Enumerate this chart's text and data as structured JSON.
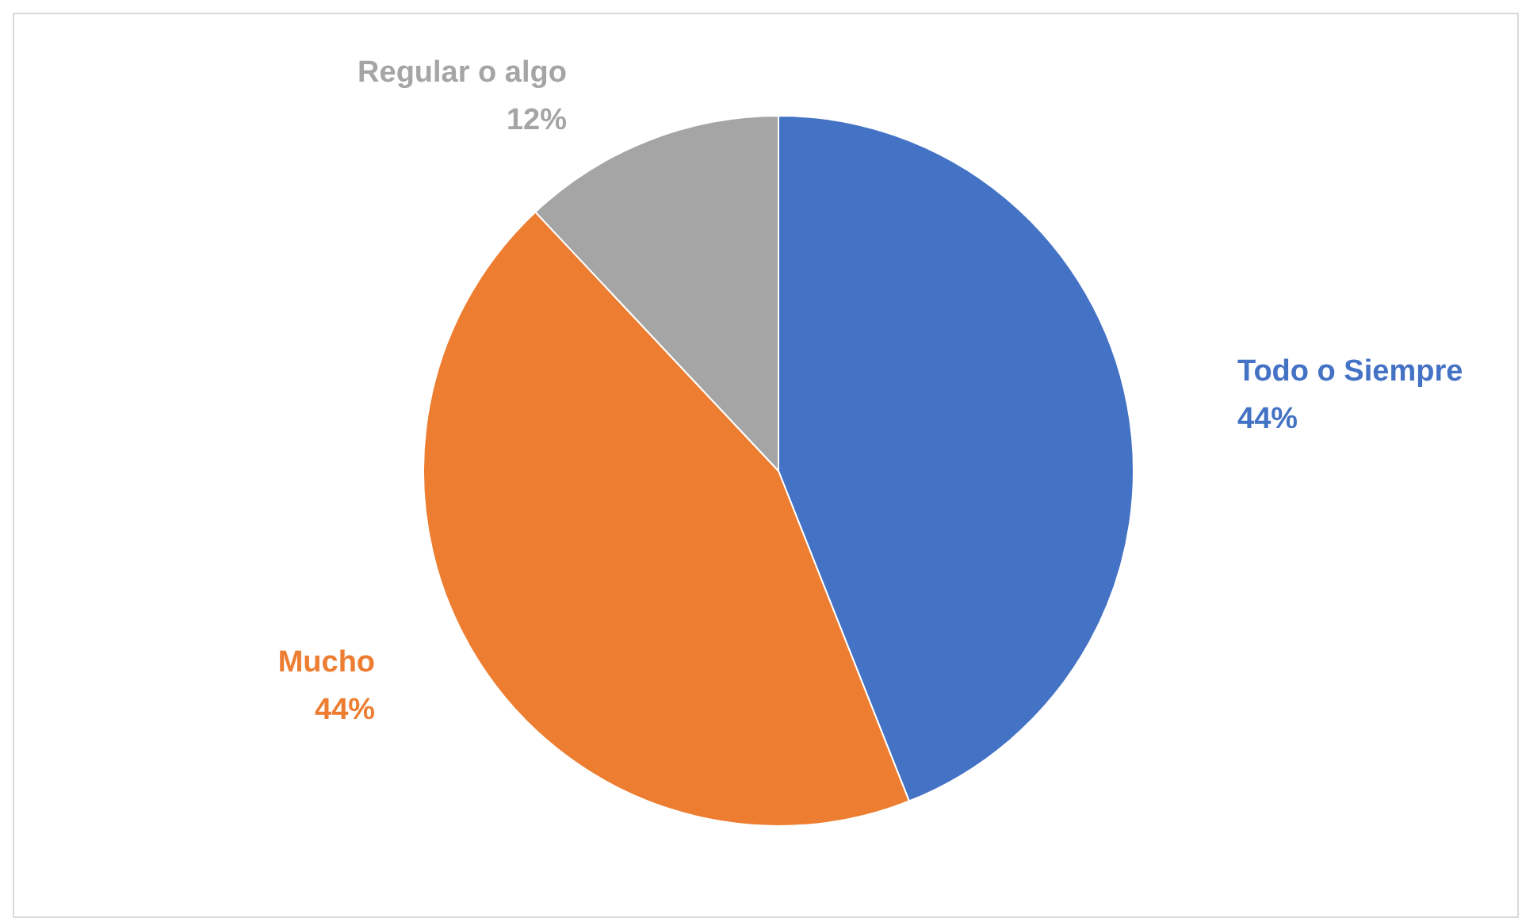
{
  "chart_data": {
    "type": "pie",
    "categories": [
      "Todo o Siempre",
      "Mucho",
      "Regular o algo"
    ],
    "values": [
      44,
      44,
      12
    ],
    "colors": [
      "#4472c4",
      "#ed7d31",
      "#a5a5a5"
    ],
    "value_labels": [
      "44%",
      "44%",
      "12%"
    ],
    "legend": false
  }
}
